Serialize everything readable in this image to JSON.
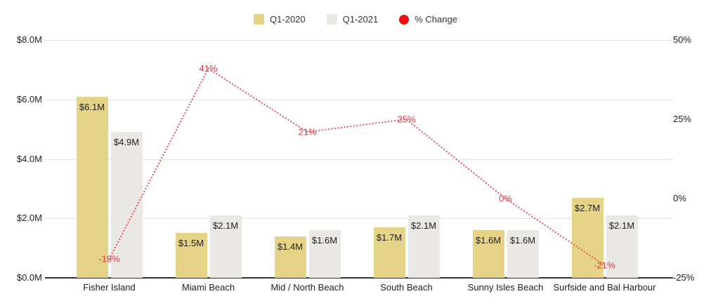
{
  "legend": {
    "items_note": "legend swatches: khaki square, gray square, red circle"
  },
  "colors": {
    "bar_q1_2020": "#e5d487",
    "bar_q1_2021": "#eae8e5",
    "line_pct_change": "#ea5560",
    "pct_label_text": "#de393f",
    "legend_dot_red": "#ee1111",
    "bar_label_text": "#212121",
    "axis_text": "#202124",
    "gridline": "#e2e2e2",
    "axis_line": "#333333",
    "background": "#ffffff"
  },
  "chart_data": {
    "type": "combo",
    "title": "",
    "grid": true,
    "legend_position": "top",
    "categories": [
      "Fisher Island",
      "Miami Beach",
      "Mid / North Beach",
      "South Beach",
      "Sunny Isles Beach",
      "Surfside and Bal Harbour"
    ],
    "series": [
      {
        "name": "Q1-2020",
        "type": "bar",
        "axis": "left",
        "color": "#e5d487",
        "values_musd": [
          6.1,
          1.5,
          1.4,
          1.7,
          1.6,
          2.7
        ],
        "labels": [
          "$6.1M",
          "$1.5M",
          "$1.4M",
          "$1.7M",
          "$1.6M",
          "$2.7M"
        ]
      },
      {
        "name": "Q1-2021",
        "type": "bar",
        "axis": "left",
        "color": "#eae8e5",
        "values_musd": [
          4.9,
          2.1,
          1.6,
          2.1,
          1.6,
          2.1
        ],
        "labels": [
          "$4.9M",
          "$2.1M",
          "$1.6M",
          "$2.1M",
          "$1.6M",
          "$2.1M"
        ]
      },
      {
        "name": "% Change",
        "type": "line",
        "style": "dotted",
        "axis": "right",
        "color": "#ea5560",
        "label_color": "#de393f",
        "legend_color": "#ee1111",
        "values_pct": [
          -19,
          41,
          21,
          25,
          0,
          -21
        ],
        "labels": [
          "-19%",
          "41%",
          "21%",
          "25%",
          "0%",
          "-21%"
        ]
      }
    ],
    "left_axis": {
      "ticks": [
        "$0.0M",
        "$2.0M",
        "$4.0M",
        "$6.0M",
        "$8.0M"
      ],
      "tick_values": [
        0,
        2,
        4,
        6,
        8
      ],
      "range_musd": [
        0,
        8
      ]
    },
    "right_axis": {
      "ticks": [
        "-25%",
        "0%",
        "25%",
        "50%"
      ],
      "tick_values": [
        -25,
        0,
        25,
        50
      ],
      "range_pct": [
        -25,
        50
      ]
    }
  }
}
